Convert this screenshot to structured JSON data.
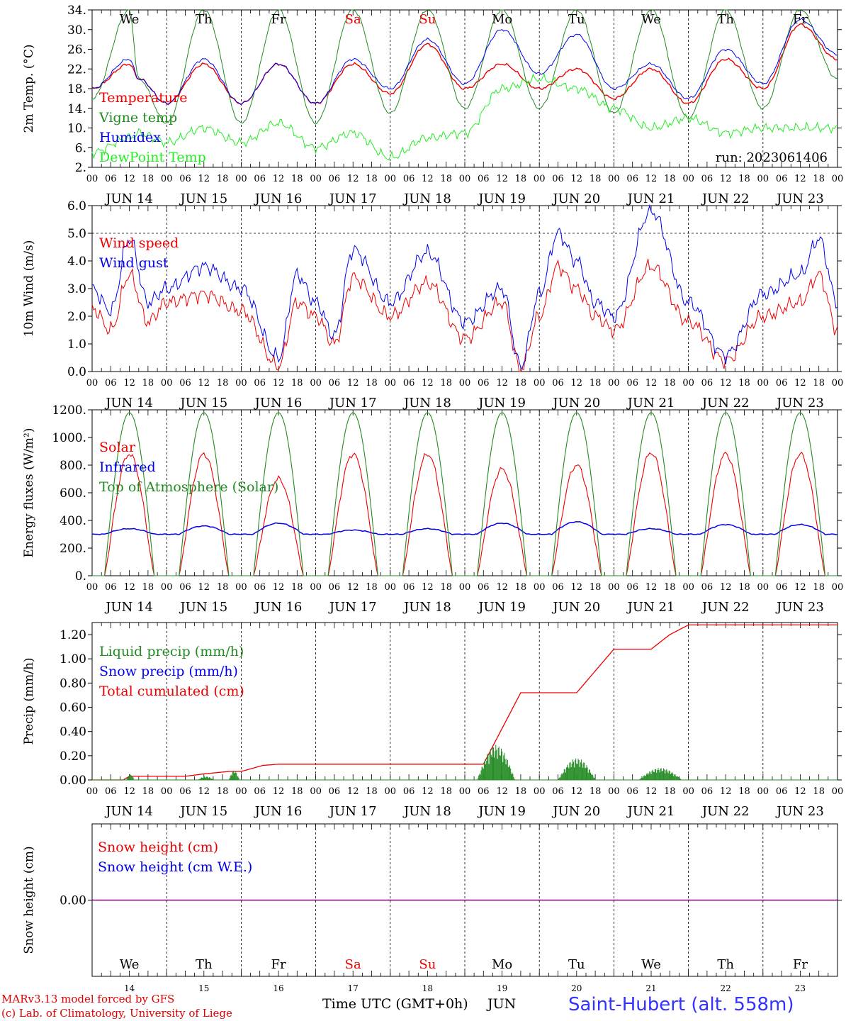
{
  "footer": {
    "credit_line1": "MARv3.13 model forced by GFS",
    "credit_line2": "(c) Lab. of Climatology, University of Liege",
    "x_axis_title": "Time UTC (GMT+0h)",
    "month": "JUN",
    "station": "Saint-Hubert (alt. 558m)"
  },
  "colors": {
    "red": "#ee0000",
    "blue": "#0000ee",
    "green": "#228b22",
    "light_green": "#22ee22",
    "purple": "#800080",
    "weekend_red": "#ee0000"
  },
  "days": {
    "weekdays": [
      "We",
      "Th",
      "Fr",
      "Sa",
      "Su",
      "Mo",
      "Tu",
      "We",
      "Th",
      "Fr"
    ],
    "weekend_flags": [
      false,
      false,
      false,
      true,
      true,
      false,
      false,
      false,
      false,
      false
    ],
    "dates": [
      "JUN 14",
      "JUN 15",
      "JUN 16",
      "JUN 17",
      "JUN 18",
      "JUN 19",
      "JUN 20",
      "JUN 21",
      "JUN 22",
      "JUN 23"
    ],
    "day_numbers": [
      "14",
      "15",
      "16",
      "17",
      "18",
      "19",
      "20",
      "21",
      "22",
      "23"
    ],
    "hour_ticks": [
      "00",
      "06",
      "12",
      "18"
    ],
    "end_tick": "00"
  },
  "chart_data": [
    {
      "type": "line",
      "ylabel": "2m Temp. (°C)",
      "ylim": [
        2,
        34
      ],
      "yticks": [
        "2.",
        "6.",
        "10.",
        "14.",
        "18.",
        "22.",
        "26.",
        "30.",
        "34."
      ],
      "annotation": "run: 2023061406",
      "legend": [
        "Temperature",
        "Vigne temp",
        "Humidex",
        "DewPoint Temp"
      ],
      "x_hours": [
        0,
        12,
        15,
        24,
        36,
        48,
        60,
        72,
        84,
        96,
        108,
        120,
        132,
        144,
        156,
        168,
        180,
        192,
        204,
        216,
        228,
        240
      ],
      "series": [
        {
          "name": "Temperature",
          "color": "red",
          "values": [
            18,
            23,
            20,
            15,
            23,
            15,
            23,
            15,
            23,
            17,
            27,
            18,
            23,
            18,
            22,
            16,
            22,
            15,
            24,
            18,
            31,
            24
          ]
        },
        {
          "name": "Vigne temp",
          "color": "green",
          "values": [
            16,
            34,
            20,
            11,
            34,
            11,
            34,
            11,
            34,
            13,
            34,
            14,
            34,
            14,
            34,
            13,
            34,
            12,
            34,
            14,
            34,
            20
          ]
        },
        {
          "name": "Humidex",
          "color": "blue",
          "values": [
            18,
            24,
            20,
            15,
            24,
            15,
            23,
            15,
            24,
            18,
            28,
            19,
            30,
            21,
            29,
            18,
            23,
            16,
            26,
            19,
            32,
            25
          ]
        },
        {
          "name": "DewPoint Temp",
          "color": "light_green",
          "values": [
            5,
            8,
            9,
            7,
            10,
            7,
            11,
            6,
            9,
            4,
            8,
            9,
            18,
            20,
            18,
            14,
            10,
            12,
            9,
            10,
            10,
            10
          ]
        }
      ]
    },
    {
      "type": "line",
      "ylabel": "10m Wind (m/s)",
      "ylim": [
        0,
        6
      ],
      "yticks": [
        "0.0",
        "1.0",
        "2.0",
        "3.0",
        "4.0",
        "5.0",
        "6.0"
      ],
      "ref_line": 5.0,
      "legend": [
        "Wind speed",
        "Wind gust"
      ],
      "x_hours": [
        0,
        6,
        12,
        18,
        24,
        36,
        48,
        60,
        66,
        72,
        78,
        84,
        96,
        108,
        120,
        132,
        138,
        144,
        150,
        156,
        162,
        168,
        180,
        192,
        204,
        216,
        228,
        234,
        240
      ],
      "series": [
        {
          "name": "Wind speed",
          "color": "red",
          "values": [
            2.3,
            1.5,
            3.5,
            1.8,
            2.5,
            2.8,
            2.2,
            0.2,
            2.5,
            2.0,
            1.0,
            3.4,
            2.0,
            3.2,
            1.2,
            2.5,
            0.1,
            2.0,
            3.8,
            3.0,
            2.0,
            1.5,
            3.8,
            1.8,
            0.4,
            2.0,
            2.5,
            3.5,
            1.5
          ]
        },
        {
          "name": "Wind gust",
          "color": "blue",
          "values": [
            3.0,
            2.2,
            4.8,
            2.5,
            3.0,
            3.8,
            3.0,
            0.5,
            3.5,
            2.5,
            1.3,
            4.4,
            2.5,
            4.3,
            1.8,
            3.0,
            0.2,
            2.8,
            5.0,
            4.0,
            2.5,
            2.0,
            5.8,
            2.5,
            0.6,
            2.8,
            3.5,
            4.8,
            2.5
          ]
        }
      ]
    },
    {
      "type": "line",
      "ylabel": "Energy fluxes (W/m²)",
      "ylim": [
        0,
        1200
      ],
      "yticks": [
        "0.",
        "200.",
        "400.",
        "600.",
        "800.",
        "1000.",
        "1200."
      ],
      "legend": [
        "Solar",
        "Infrared",
        "Top of Atmosphere (Solar)"
      ],
      "sunrise_hour": 4,
      "sunset_hour": 20,
      "series": [
        {
          "name": "Solar",
          "color": "red",
          "daily_peaks": [
            880,
            880,
            700,
            880,
            880,
            770,
            800,
            890,
            880,
            880
          ]
        },
        {
          "name": "Infrared",
          "color": "blue",
          "daily_peaks": [
            340,
            360,
            380,
            330,
            340,
            380,
            390,
            340,
            370,
            370
          ],
          "night_value": 300
        },
        {
          "name": "Top of Atmosphere (Solar)",
          "color": "green",
          "daily_peaks": [
            1180,
            1180,
            1180,
            1180,
            1180,
            1180,
            1180,
            1180,
            1180,
            1180
          ]
        }
      ]
    },
    {
      "type": "line",
      "ylabel": "Precip (mm/h)",
      "ylim": [
        0,
        1.3
      ],
      "yticks": [
        "0.00",
        "0.20",
        "0.40",
        "0.60",
        "0.80",
        "1.00",
        "1.20"
      ],
      "legend": [
        "Liquid precip (mm/h)",
        "Snow precip (mm/h)",
        "Total cumulated (cm)"
      ],
      "x_hours": [
        0,
        10,
        12,
        24,
        30,
        36,
        44,
        48,
        55,
        60,
        120,
        126,
        138,
        144,
        156,
        162,
        168,
        174,
        180,
        186,
        192,
        240
      ],
      "series": [
        {
          "name": "Total cumulated (cm)",
          "color": "red",
          "values": [
            0,
            0,
            0.03,
            0.03,
            0.03,
            0.05,
            0.07,
            0.07,
            0.12,
            0.13,
            0.13,
            0.13,
            0.72,
            0.72,
            0.72,
            0.9,
            1.08,
            1.08,
            1.08,
            1.2,
            1.28,
            1.28
          ]
        },
        {
          "name": "Liquid precip (mm/h)",
          "color": "green",
          "bursts": [
            {
              "start": 11,
              "end": 14,
              "peak": 0.05
            },
            {
              "start": 34,
              "end": 40,
              "peak": 0.03
            },
            {
              "start": 44,
              "end": 48,
              "peak": 0.08
            },
            {
              "start": 124,
              "end": 138,
              "peak": 0.29
            },
            {
              "start": 150,
              "end": 164,
              "peak": 0.18
            },
            {
              "start": 176,
              "end": 192,
              "peak": 0.1
            }
          ]
        },
        {
          "name": "Snow precip (mm/h)",
          "color": "blue",
          "values": []
        }
      ]
    },
    {
      "type": "line",
      "ylabel": "Snow height (cm)",
      "ylim": [
        -1,
        1
      ],
      "yticks": [
        "0.00"
      ],
      "legend": [
        "Snow height (cm)",
        "Snow height (cm W.E.)"
      ],
      "series": [
        {
          "name": "Snow height (cm)",
          "color": "red",
          "values": [
            0,
            0
          ]
        },
        {
          "name": "Snow height (cm W.E.)",
          "color": "blue",
          "values": [
            0,
            0
          ]
        }
      ]
    }
  ]
}
